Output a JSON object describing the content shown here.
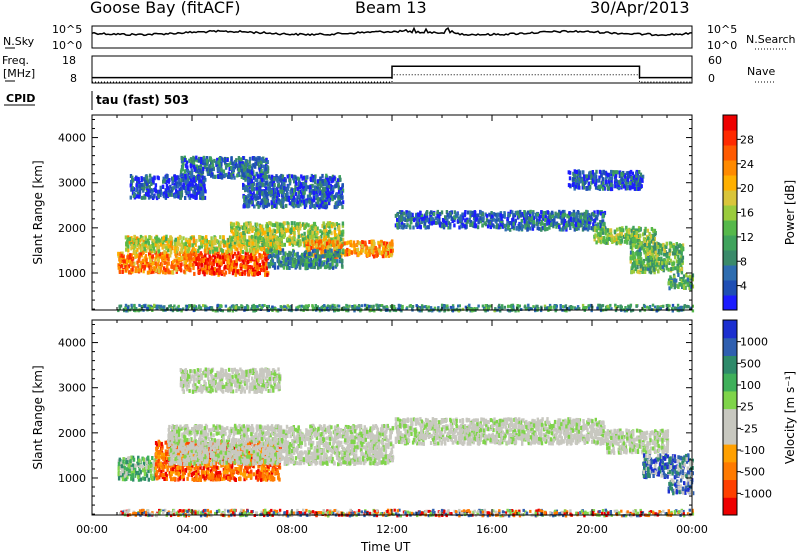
{
  "header": {
    "station": "Goose Bay (fitACF)",
    "beam": "Beam 13",
    "date": "30/Apr/2013"
  },
  "noise_panel": {
    "left_label": "N.Sky",
    "right_label": "N.Search",
    "ticks": [
      "10^5",
      "10^0"
    ],
    "color_sky": "#000000"
  },
  "freq_panel": {
    "left_label_top": "Freq.",
    "left_label_unit": "[MHz]",
    "left_ticks": [
      "18",
      "8"
    ],
    "right_label": "Nave",
    "right_ticks": [
      "60",
      "0"
    ],
    "freq_series": [
      [
        0,
        10
      ],
      [
        12.0,
        10
      ],
      [
        12.0,
        15.2
      ],
      [
        21.9,
        15.2
      ],
      [
        21.9,
        10
      ],
      [
        24,
        10
      ]
    ],
    "nave_series": [
      [
        0,
        0
      ],
      [
        12.0,
        0
      ],
      [
        12.0,
        20
      ],
      [
        21.9,
        20
      ],
      [
        21.9,
        0
      ],
      [
        24,
        0
      ]
    ]
  },
  "cpid": {
    "label": "CPID",
    "value": "tau (fast) 503"
  },
  "chart_data": [
    {
      "type": "heatmap",
      "name": "power",
      "xlabel": "",
      "ylabel": "Slant Range [km]",
      "xlim": [
        0,
        24
      ],
      "ylim": [
        180,
        4500
      ],
      "yticks": [
        1000,
        2000,
        3000,
        4000
      ],
      "colorbar": {
        "label": "Power [dB]",
        "ticks": [
          "4",
          "8",
          "12",
          "16",
          "20",
          "24",
          "28"
        ],
        "colors": [
          "#1c1cff",
          "#1f4fb4",
          "#2e6db0",
          "#3a8a6a",
          "#3fa35c",
          "#55b84a",
          "#9acb3c",
          "#d9c53a",
          "#ffb000",
          "#ff8a00",
          "#ff5a00",
          "#ff2a00",
          "#ee0000"
        ]
      },
      "regions": [
        {
          "t": [
            1.0,
            4.0
          ],
          "r": [
            1050,
            1500
          ],
          "level": 0.75
        },
        {
          "t": [
            4.0,
            7.0
          ],
          "r": [
            1000,
            1500
          ],
          "level": 0.85
        },
        {
          "t": [
            1.3,
            7.5
          ],
          "r": [
            1500,
            1850
          ],
          "level": 0.55
        },
        {
          "t": [
            5.5,
            10.0
          ],
          "r": [
            1650,
            2150
          ],
          "level": 0.5
        },
        {
          "t": [
            8.5,
            12.0
          ],
          "r": [
            1400,
            1750
          ],
          "level": 0.72
        },
        {
          "t": [
            7.0,
            10.0
          ],
          "r": [
            1150,
            1550
          ],
          "level": 0.25
        },
        {
          "t": [
            3.5,
            7.0
          ],
          "r": [
            3150,
            3600
          ],
          "level": 0.2
        },
        {
          "t": [
            1.5,
            4.5
          ],
          "r": [
            2700,
            3200
          ],
          "level": 0.12
        },
        {
          "t": [
            6.0,
            10.0
          ],
          "r": [
            2500,
            3200
          ],
          "level": 0.15
        },
        {
          "t": [
            12.1,
            16.5
          ],
          "r": [
            2050,
            2400
          ],
          "level": 0.15
        },
        {
          "t": [
            16.5,
            20.5
          ],
          "r": [
            2000,
            2400
          ],
          "level": 0.2
        },
        {
          "t": [
            20.0,
            22.5
          ],
          "r": [
            1700,
            2050
          ],
          "level": 0.45
        },
        {
          "t": [
            21.5,
            23.6
          ],
          "r": [
            1050,
            1700
          ],
          "level": 0.4
        },
        {
          "t": [
            23.0,
            24.0
          ],
          "r": [
            700,
            1000
          ],
          "level": 0.35
        },
        {
          "t": [
            19.0,
            22.0
          ],
          "r": [
            2900,
            3300
          ],
          "level": 0.15
        },
        {
          "t": [
            1.0,
            24.0
          ],
          "r": [
            190,
            320
          ],
          "level": 0.3
        }
      ]
    },
    {
      "type": "heatmap",
      "name": "velocity",
      "xlabel": "Time UT",
      "ylabel": "Slant Range [km]",
      "xlim": [
        0,
        24
      ],
      "ylim": [
        180,
        4500
      ],
      "yticks": [
        1000,
        2000,
        3000,
        4000
      ],
      "xticks": [
        "00:00",
        "04:00",
        "08:00",
        "12:00",
        "16:00",
        "20:00",
        "00:00"
      ],
      "colorbar": {
        "label": "Velocity [m s⁻¹]",
        "ticks": [
          "-1000",
          "-500",
          "-100",
          "-25",
          "25",
          "100",
          "500",
          "1000"
        ],
        "colors": [
          "#ee0000",
          "#ff4000",
          "#ff7a00",
          "#ffa000",
          "#c8c8c0",
          "#c8c8c0",
          "#7fd44a",
          "#3fb05a",
          "#2e8a6a",
          "#2f5fb0",
          "#1c2fd0"
        ]
      },
      "regions": [
        {
          "t": [
            1.0,
            2.5
          ],
          "r": [
            1000,
            1500
          ],
          "kind": "green"
        },
        {
          "t": [
            2.5,
            7.5
          ],
          "r": [
            1000,
            1850
          ],
          "kind": "orange"
        },
        {
          "t": [
            3.0,
            12.0
          ],
          "r": [
            1350,
            2200
          ],
          "kind": "gray"
        },
        {
          "t": [
            3.5,
            7.5
          ],
          "r": [
            2950,
            3450
          ],
          "kind": "gray"
        },
        {
          "t": [
            12.1,
            20.5
          ],
          "r": [
            1800,
            2350
          ],
          "kind": "gray"
        },
        {
          "t": [
            20.5,
            23.0
          ],
          "r": [
            1600,
            2100
          ],
          "kind": "gray"
        },
        {
          "t": [
            22.0,
            24.0
          ],
          "r": [
            1050,
            1550
          ],
          "kind": "blue"
        },
        {
          "t": [
            23.0,
            24.0
          ],
          "r": [
            700,
            1000
          ],
          "kind": "blue"
        },
        {
          "t": [
            1.0,
            24.0
          ],
          "r": [
            190,
            320
          ],
          "kind": "mixed"
        }
      ]
    }
  ]
}
